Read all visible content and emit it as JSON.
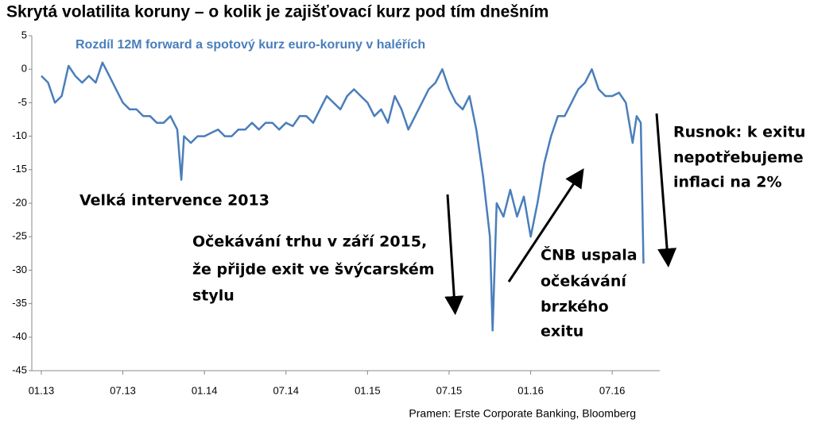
{
  "chart_data": {
    "type": "line",
    "title": "Skrytá volatilita koruny – o kolik je zajišťovací kurz pod tím dnešním",
    "subtitle": "Rozdíl 12M forward a spotový kurz euro-koruny v haléřích",
    "source": "Pramen: Erste Corporate Banking, Bloomberg",
    "annotations": [
      "Velká intervence 2013",
      "Očekávání trhu v září 2015,",
      "že přijde exit ve švýcarském",
      "stylu",
      "ČNB uspala",
      "očekávání",
      "brzkého",
      "exitu",
      "Rusnok: k exitu",
      "nepotřebujeme",
      "inflaci na 2%"
    ],
    "xlim": [
      -0.7,
      45.5
    ],
    "xticks": [
      {
        "value": 0,
        "label": "01.13"
      },
      {
        "value": 6,
        "label": "07.13"
      },
      {
        "value": 12,
        "label": "01.14"
      },
      {
        "value": 18,
        "label": "07.14"
      },
      {
        "value": 24,
        "label": "01.15"
      },
      {
        "value": 30,
        "label": "07.15"
      },
      {
        "value": 36,
        "label": "01.16"
      },
      {
        "value": 42,
        "label": "07.16"
      }
    ],
    "ylim": [
      -45,
      5
    ],
    "yticks": [
      5,
      0,
      -5,
      -10,
      -15,
      -20,
      -25,
      -30,
      -35,
      -40,
      -45
    ],
    "series": [
      {
        "color": "#4a7ebb",
        "x": [
          0,
          0.5,
          1,
          1.5,
          2,
          2.5,
          3,
          3.5,
          4,
          4.5,
          5,
          5.5,
          6,
          6.5,
          7,
          7.5,
          8,
          8.5,
          9,
          9.5,
          10,
          10.3,
          10.5,
          11,
          11.5,
          12,
          12.5,
          13,
          13.5,
          14,
          14.5,
          15,
          15.5,
          16,
          16.5,
          17,
          17.5,
          18,
          18.5,
          19,
          19.5,
          20,
          20.5,
          21,
          21.5,
          22,
          22.5,
          23,
          23.5,
          24,
          24.5,
          25,
          25.5,
          26,
          26.5,
          27,
          27.5,
          28,
          28.5,
          29,
          29.5,
          30,
          30.5,
          31,
          31.5,
          32,
          32.5,
          33,
          33.2,
          33.5,
          34,
          34.5,
          35,
          35.5,
          36,
          36.5,
          37,
          37.5,
          38,
          38.5,
          39,
          39.5,
          40,
          40.5,
          41,
          41.5,
          42,
          42.5,
          43,
          43.5,
          43.8,
          44.1,
          44.3
        ],
        "values": [
          -1,
          -2,
          -5,
          -4,
          0.5,
          -1,
          -2,
          -1,
          -2,
          1,
          -1,
          -3,
          -5,
          -6,
          -6,
          -7,
          -7,
          -8,
          -8,
          -7,
          -9,
          -16.5,
          -10,
          -11,
          -10,
          -10,
          -9.5,
          -9,
          -10,
          -10,
          -9,
          -9,
          -8,
          -9,
          -8,
          -8,
          -9,
          -8,
          -8.5,
          -7,
          -7,
          -8,
          -6,
          -4,
          -5,
          -6,
          -4,
          -3,
          -4,
          -5,
          -7,
          -6,
          -8,
          -4,
          -6,
          -9,
          -7,
          -5,
          -3,
          -2,
          0,
          -3,
          -5,
          -6,
          -4,
          -9,
          -16,
          -25,
          -39,
          -20,
          -22,
          -18,
          -22,
          -19,
          -25,
          -20,
          -14,
          -10,
          -7,
          -7,
          -5,
          -3,
          -2,
          0,
          -3,
          -4,
          -4,
          -3.5,
          -5,
          -11,
          -7,
          -8,
          -29
        ]
      }
    ]
  }
}
